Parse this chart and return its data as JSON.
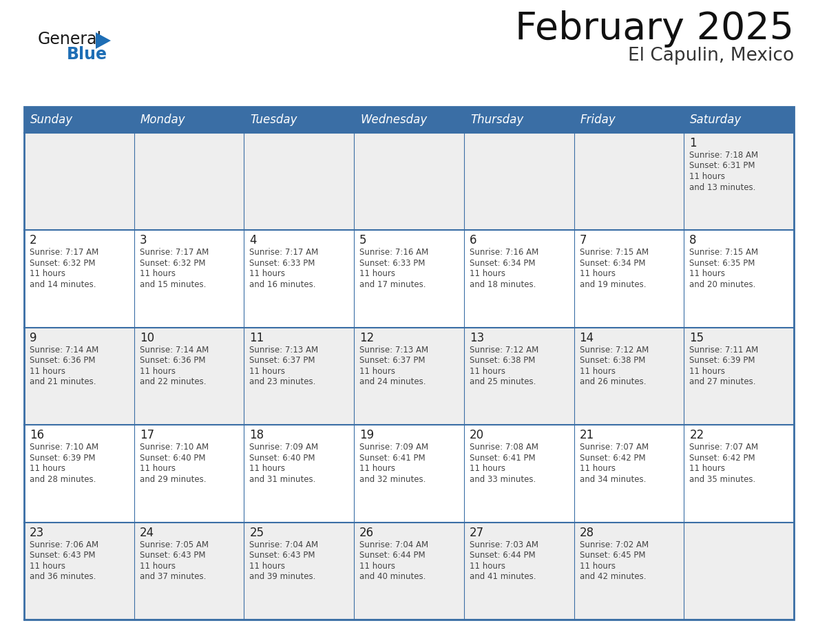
{
  "title": "February 2025",
  "subtitle": "El Capulin, Mexico",
  "header_bg": "#3a6ea5",
  "header_text_color": "#ffffff",
  "cell_bg_white": "#ffffff",
  "cell_bg_gray": "#eeeeee",
  "border_color": "#3a6ea5",
  "day_headers": [
    "Sunday",
    "Monday",
    "Tuesday",
    "Wednesday",
    "Thursday",
    "Friday",
    "Saturday"
  ],
  "title_color": "#111111",
  "subtitle_color": "#333333",
  "day_num_color": "#222222",
  "cell_text_color": "#444444",
  "calendar_data": [
    [
      null,
      null,
      null,
      null,
      null,
      null,
      {
        "day": "1",
        "sunrise": "7:18 AM",
        "sunset": "6:31 PM",
        "daylight": "11 hours and 13 minutes."
      }
    ],
    [
      {
        "day": "2",
        "sunrise": "7:17 AM",
        "sunset": "6:32 PM",
        "daylight": "11 hours and 14 minutes."
      },
      {
        "day": "3",
        "sunrise": "7:17 AM",
        "sunset": "6:32 PM",
        "daylight": "11 hours and 15 minutes."
      },
      {
        "day": "4",
        "sunrise": "7:17 AM",
        "sunset": "6:33 PM",
        "daylight": "11 hours and 16 minutes."
      },
      {
        "day": "5",
        "sunrise": "7:16 AM",
        "sunset": "6:33 PM",
        "daylight": "11 hours and 17 minutes."
      },
      {
        "day": "6",
        "sunrise": "7:16 AM",
        "sunset": "6:34 PM",
        "daylight": "11 hours and 18 minutes."
      },
      {
        "day": "7",
        "sunrise": "7:15 AM",
        "sunset": "6:34 PM",
        "daylight": "11 hours and 19 minutes."
      },
      {
        "day": "8",
        "sunrise": "7:15 AM",
        "sunset": "6:35 PM",
        "daylight": "11 hours and 20 minutes."
      }
    ],
    [
      {
        "day": "9",
        "sunrise": "7:14 AM",
        "sunset": "6:36 PM",
        "daylight": "11 hours and 21 minutes."
      },
      {
        "day": "10",
        "sunrise": "7:14 AM",
        "sunset": "6:36 PM",
        "daylight": "11 hours and 22 minutes."
      },
      {
        "day": "11",
        "sunrise": "7:13 AM",
        "sunset": "6:37 PM",
        "daylight": "11 hours and 23 minutes."
      },
      {
        "day": "12",
        "sunrise": "7:13 AM",
        "sunset": "6:37 PM",
        "daylight": "11 hours and 24 minutes."
      },
      {
        "day": "13",
        "sunrise": "7:12 AM",
        "sunset": "6:38 PM",
        "daylight": "11 hours and 25 minutes."
      },
      {
        "day": "14",
        "sunrise": "7:12 AM",
        "sunset": "6:38 PM",
        "daylight": "11 hours and 26 minutes."
      },
      {
        "day": "15",
        "sunrise": "7:11 AM",
        "sunset": "6:39 PM",
        "daylight": "11 hours and 27 minutes."
      }
    ],
    [
      {
        "day": "16",
        "sunrise": "7:10 AM",
        "sunset": "6:39 PM",
        "daylight": "11 hours and 28 minutes."
      },
      {
        "day": "17",
        "sunrise": "7:10 AM",
        "sunset": "6:40 PM",
        "daylight": "11 hours and 29 minutes."
      },
      {
        "day": "18",
        "sunrise": "7:09 AM",
        "sunset": "6:40 PM",
        "daylight": "11 hours and 31 minutes."
      },
      {
        "day": "19",
        "sunrise": "7:09 AM",
        "sunset": "6:41 PM",
        "daylight": "11 hours and 32 minutes."
      },
      {
        "day": "20",
        "sunrise": "7:08 AM",
        "sunset": "6:41 PM",
        "daylight": "11 hours and 33 minutes."
      },
      {
        "day": "21",
        "sunrise": "7:07 AM",
        "sunset": "6:42 PM",
        "daylight": "11 hours and 34 minutes."
      },
      {
        "day": "22",
        "sunrise": "7:07 AM",
        "sunset": "6:42 PM",
        "daylight": "11 hours and 35 minutes."
      }
    ],
    [
      {
        "day": "23",
        "sunrise": "7:06 AM",
        "sunset": "6:43 PM",
        "daylight": "11 hours and 36 minutes."
      },
      {
        "day": "24",
        "sunrise": "7:05 AM",
        "sunset": "6:43 PM",
        "daylight": "11 hours and 37 minutes."
      },
      {
        "day": "25",
        "sunrise": "7:04 AM",
        "sunset": "6:43 PM",
        "daylight": "11 hours and 39 minutes."
      },
      {
        "day": "26",
        "sunrise": "7:04 AM",
        "sunset": "6:44 PM",
        "daylight": "11 hours and 40 minutes."
      },
      {
        "day": "27",
        "sunrise": "7:03 AM",
        "sunset": "6:44 PM",
        "daylight": "11 hours and 41 minutes."
      },
      {
        "day": "28",
        "sunrise": "7:02 AM",
        "sunset": "6:45 PM",
        "daylight": "11 hours and 42 minutes."
      },
      null
    ]
  ],
  "logo_general_color": "#1a1a1a",
  "logo_blue_color": "#1e6eb5",
  "logo_triangle_color": "#1e6eb5"
}
